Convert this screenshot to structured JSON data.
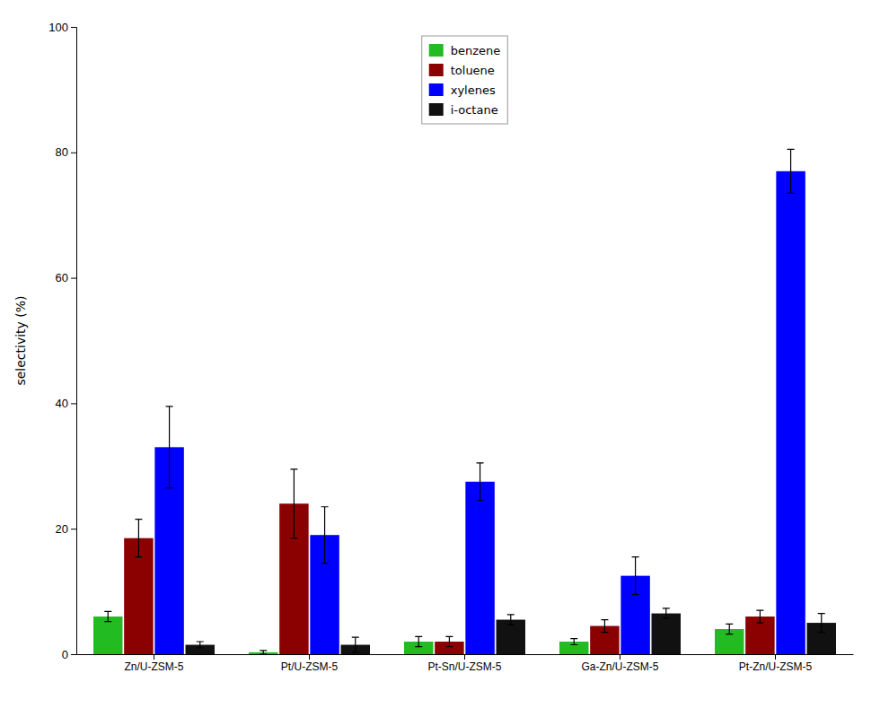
{
  "chart_data": {
    "type": "bar",
    "categories": [
      "Zn/U-ZSM-5",
      "Pt/U-ZSM-5",
      "Pt-Sn/U-ZSM-5",
      "Ga-Zn/U-ZSM-5",
      "Pt-Zn/U-ZSM-5"
    ],
    "series": [
      {
        "name": "benzene",
        "color": "#22bb22",
        "values": [
          6.0,
          0.3,
          2.0,
          2.0,
          4.0
        ],
        "errors": [
          0.8,
          0.3,
          0.8,
          0.5,
          0.8
        ]
      },
      {
        "name": "toluene",
        "color": "#8b0000",
        "values": [
          18.5,
          24.0,
          2.0,
          4.5,
          6.0
        ],
        "errors": [
          3.0,
          5.5,
          0.8,
          1.0,
          1.0
        ]
      },
      {
        "name": "xylenes",
        "color": "#0000ff",
        "values": [
          33.0,
          19.0,
          27.5,
          12.5,
          77.0
        ],
        "errors": [
          6.5,
          4.5,
          3.0,
          3.0,
          3.5
        ]
      },
      {
        "name": "i-octane",
        "color": "#111111",
        "values": [
          1.5,
          1.5,
          5.5,
          6.5,
          5.0
        ],
        "errors": [
          0.5,
          1.2,
          0.8,
          0.8,
          1.5
        ]
      }
    ],
    "y_label": "selectivity (%)",
    "ylim": [
      0,
      100
    ],
    "yticks": [
      0,
      20,
      40,
      60,
      80,
      100
    ],
    "grid": false,
    "legend": "upper center"
  }
}
